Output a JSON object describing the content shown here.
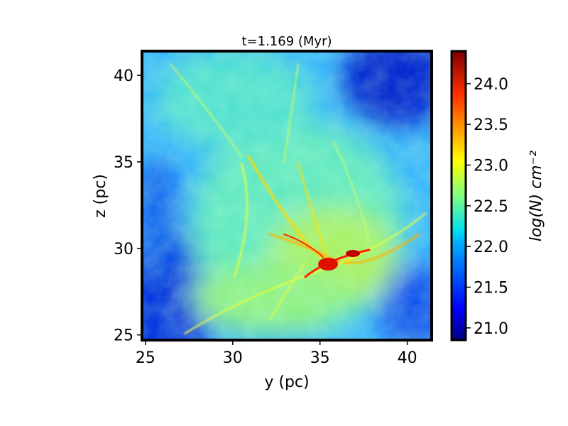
{
  "chart_data": {
    "type": "heatmap",
    "title": "t=1.169 (Myr)",
    "xlabel": "y (pc)",
    "ylabel": "z (pc)",
    "xlim": [
      24.8,
      41.4
    ],
    "ylim": [
      24.7,
      41.4
    ],
    "xticks": [
      25,
      30,
      35,
      40
    ],
    "yticks": [
      25,
      30,
      35,
      40
    ],
    "colorbar": {
      "label": "log(N) cm⁻²",
      "colormap": "jet",
      "range": [
        20.85,
        24.4
      ],
      "ticks": [
        21.0,
        21.5,
        22.0,
        22.5,
        23.0,
        23.5,
        24.0
      ]
    },
    "field_description": "column density map of filamentary cloud; dense red hub near (35.5, 29.5)",
    "hub_center": [
      35.5,
      29.5
    ]
  }
}
